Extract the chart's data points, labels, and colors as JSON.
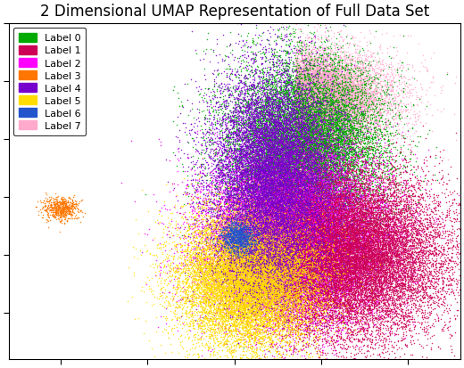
{
  "title": "2 Dimensional UMAP Representation of Full Data Set",
  "title_fontsize": 12,
  "labels": [
    "Label 0",
    "Label 1",
    "Label 2",
    "Label 3",
    "Label 4",
    "Label 5",
    "Label 6",
    "Label 7"
  ],
  "colors": [
    "#00aa00",
    "#cc0055",
    "#ff00ff",
    "#ff7700",
    "#7700cc",
    "#ffdd00",
    "#2255cc",
    "#ffaacc"
  ],
  "marker_size": 1.2,
  "alpha": 0.85,
  "figsize": [
    5.2,
    4.14
  ],
  "dpi": 100,
  "seed": 42
}
